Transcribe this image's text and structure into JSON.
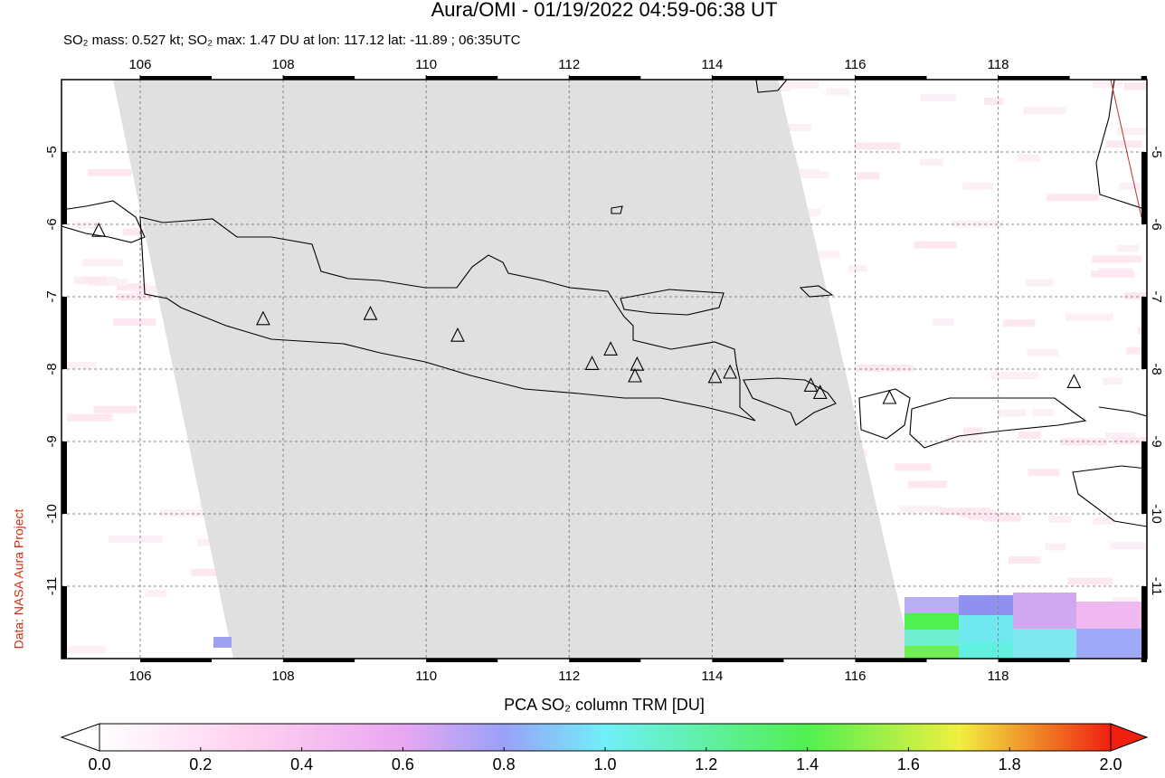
{
  "chart_data": {
    "type": "map",
    "title": "Aura/OMI - 01/19/2022 04:59-06:38 UT",
    "subtitle": "SO₂ mass: 0.527 kt; SO₂ max: 1.47 DU at lon: 117.12 lat: -11.89 ; 06:35UTC",
    "source": "Data: NASA Aura Project",
    "xlim": [
      104.9,
      120.08
    ],
    "ylim": [
      -12,
      -4
    ],
    "xticks": [
      106,
      108,
      110,
      112,
      114,
      116,
      118
    ],
    "yticks": [
      -5,
      -6,
      -7,
      -8,
      -9,
      -10,
      -11
    ],
    "grid": true,
    "volcanoes": {
      "color": "#000000",
      "lon": [
        105.42,
        107.72,
        109.22,
        110.44,
        112.32,
        112.58,
        112.95,
        112.92,
        114.04,
        114.25,
        115.38,
        115.51,
        116.48,
        119.06
      ],
      "lat": [
        -6.09,
        -7.31,
        -7.24,
        -7.54,
        -7.93,
        -7.73,
        -7.94,
        -8.1,
        -8.11,
        -8.05,
        -8.23,
        -8.33,
        -8.4,
        -8.18
      ]
    },
    "colorbar": {
      "label": "PCA SO₂ column TRM [DU]",
      "lim": [
        0,
        2
      ],
      "ticks": [
        {
          "value": 0,
          "label": "0.0"
        },
        0.2,
        0.4,
        0.6,
        0.8,
        {
          "value": 1,
          "label": "1.0"
        },
        1.2,
        1.4,
        1.6,
        1.8,
        {
          "value": 2,
          "label": "2.0"
        }
      ]
    }
  }
}
